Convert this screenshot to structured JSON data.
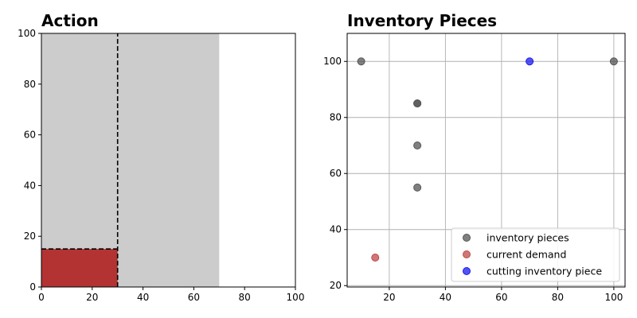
{
  "chart_data": [
    {
      "type": "area",
      "title": "Action",
      "xlabel": "",
      "ylabel": "",
      "xlim": [
        0,
        100
      ],
      "ylim": [
        0,
        100
      ],
      "xticks": [
        0,
        20,
        40,
        60,
        80,
        100
      ],
      "yticks": [
        0,
        20,
        40,
        60,
        80,
        100
      ],
      "grid": false,
      "regions": [
        {
          "kind": "inventory-piece",
          "x": [
            0,
            70
          ],
          "y": [
            0,
            100
          ],
          "color": "#cccccc"
        },
        {
          "kind": "demand",
          "x": [
            0,
            30
          ],
          "y": [
            0,
            15
          ],
          "color": "#b33333"
        }
      ],
      "cut_lines": [
        {
          "orientation": "vertical",
          "x": 30,
          "y": [
            0,
            100
          ]
        },
        {
          "orientation": "horizontal",
          "y": 15,
          "x": [
            0,
            30
          ]
        }
      ]
    },
    {
      "type": "scatter",
      "title": "Inventory Pieces",
      "xlabel": "",
      "ylabel": "",
      "xlim": [
        5,
        104
      ],
      "ylim": [
        19.5,
        110
      ],
      "xticks": [
        20,
        40,
        60,
        80,
        100
      ],
      "yticks": [
        20,
        40,
        60,
        80,
        100
      ],
      "grid": true,
      "legend_position": "lower-right",
      "series": [
        {
          "name": "inventory pieces",
          "color": "#555555",
          "points": [
            [
              10,
              100
            ],
            [
              30,
              85
            ],
            [
              30,
              85
            ],
            [
              30,
              70
            ],
            [
              30,
              55
            ],
            [
              100,
              100
            ]
          ]
        },
        {
          "name": "current demand",
          "color": "#c04848",
          "points": [
            [
              15,
              30
            ]
          ]
        },
        {
          "name": "cutting inventory piece",
          "color": "#1a1aee",
          "points": [
            [
              70,
              100
            ]
          ]
        }
      ]
    }
  ]
}
